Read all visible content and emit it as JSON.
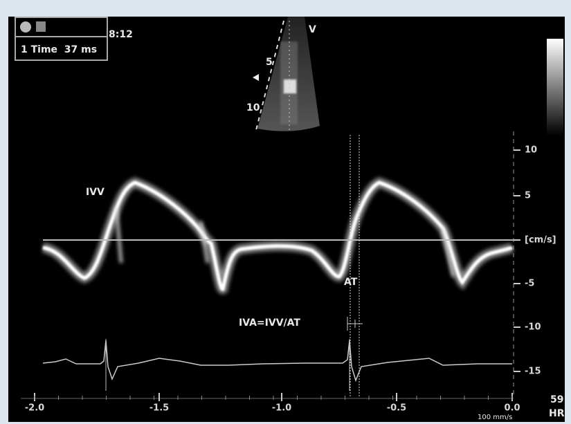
{
  "overlay": {
    "clock": "8:12",
    "mode": "1 Time  37 ms",
    "view": "V",
    "depth_labels": [
      "5",
      "10"
    ]
  },
  "annotations": {
    "ivv": "IVV",
    "at": "AT",
    "formula": "IVA=IVV/AT"
  },
  "velocity_axis": {
    "ticks": [
      "10",
      "5",
      "[cm/s]",
      "-5",
      "-10",
      "-15"
    ]
  },
  "time_axis": {
    "ticks": [
      "-2.0",
      "-1.5",
      "-1.0",
      "-0.5",
      "0.0"
    ]
  },
  "sweep": "100 mm/s",
  "hr": {
    "value": "59",
    "label": "HR"
  }
}
